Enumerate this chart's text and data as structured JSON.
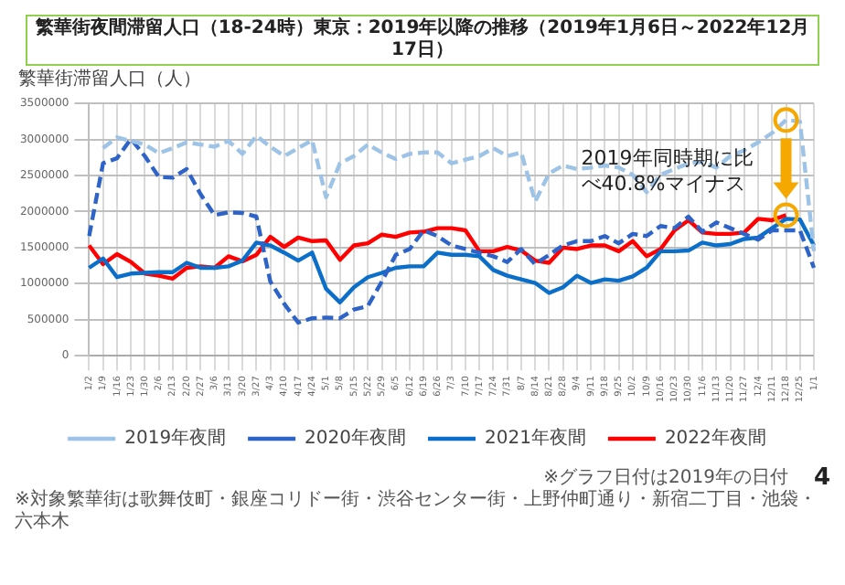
{
  "chart_data": {
    "type": "line",
    "title": "繁華街夜間滞留人口（18-24時）東京：2019年以降の推移（2019年1月6日～2022年12月17日）",
    "ylabel": "繁華街滞留人口（人）",
    "categories": [
      "1/2",
      "1/9",
      "1/16",
      "1/23",
      "1/30",
      "2/6",
      "2/13",
      "2/20",
      "2/27",
      "3/6",
      "3/13",
      "3/20",
      "3/27",
      "4/3",
      "4/10",
      "4/17",
      "4/24",
      "5/1",
      "5/8",
      "5/15",
      "5/22",
      "5/29",
      "6/5",
      "6/12",
      "6/19",
      "6/26",
      "7/3",
      "7/10",
      "7/17",
      "7/24",
      "7/31",
      "8/7",
      "8/14",
      "8/21",
      "8/28",
      "9/4",
      "9/11",
      "9/18",
      "9/25",
      "10/2",
      "10/9",
      "10/16",
      "10/23",
      "10/30",
      "11/6",
      "11/13",
      "11/20",
      "11/27",
      "12/4",
      "12/11",
      "12/18",
      "12/25",
      "1/1"
    ],
    "series": [
      {
        "name": "2019年夜間",
        "color": "#9dc3e6",
        "line_style": "dashed",
        "values": [
          null,
          2880000,
          3030000,
          2980000,
          2930000,
          2810000,
          2880000,
          2960000,
          2930000,
          2900000,
          2980000,
          2800000,
          3050000,
          2900000,
          2770000,
          2880000,
          2990000,
          2200000,
          2670000,
          2770000,
          2930000,
          2820000,
          2730000,
          2800000,
          2820000,
          2820000,
          2670000,
          2720000,
          2770000,
          2880000,
          2770000,
          2820000,
          2140000,
          2530000,
          2640000,
          2590000,
          2610000,
          2640000,
          2610000,
          2510000,
          2270000,
          2510000,
          2590000,
          2670000,
          2690000,
          2610000,
          2770000,
          2850000,
          2960000,
          3090000,
          3270000,
          3250000,
          1450000
        ]
      },
      {
        "name": "2020年夜間",
        "color": "#2e64c8",
        "line_style": "dashed",
        "values": [
          1660000,
          2670000,
          2740000,
          3010000,
          2770000,
          2480000,
          2470000,
          2590000,
          2240000,
          1950000,
          1990000,
          1980000,
          1930000,
          1030000,
          720000,
          460000,
          520000,
          530000,
          520000,
          640000,
          690000,
          1030000,
          1400000,
          1480000,
          1740000,
          1660000,
          1530000,
          1480000,
          1430000,
          1380000,
          1300000,
          1480000,
          1270000,
          1400000,
          1530000,
          1590000,
          1590000,
          1660000,
          1560000,
          1690000,
          1660000,
          1800000,
          1770000,
          1930000,
          1720000,
          1850000,
          1770000,
          1690000,
          1610000,
          1740000,
          1740000,
          1740000,
          1220000
        ]
      },
      {
        "name": "2021年夜間",
        "color": "#0b6fc9",
        "line_style": "solid",
        "values": [
          1220000,
          1350000,
          1090000,
          1140000,
          1150000,
          1160000,
          1160000,
          1290000,
          1220000,
          1220000,
          1240000,
          1320000,
          1570000,
          1530000,
          1430000,
          1320000,
          1430000,
          930000,
          740000,
          950000,
          1090000,
          1150000,
          1220000,
          1240000,
          1240000,
          1430000,
          1400000,
          1400000,
          1380000,
          1190000,
          1110000,
          1060000,
          1010000,
          870000,
          950000,
          1110000,
          1010000,
          1060000,
          1040000,
          1100000,
          1220000,
          1450000,
          1450000,
          1460000,
          1570000,
          1530000,
          1550000,
          1620000,
          1640000,
          1770000,
          1900000,
          1890000,
          1530000
        ]
      },
      {
        "name": "2022年夜間",
        "color": "#ff0000",
        "line_style": "solid",
        "values": [
          1530000,
          1270000,
          1410000,
          1300000,
          1140000,
          1110000,
          1070000,
          1220000,
          1240000,
          1220000,
          1380000,
          1310000,
          1400000,
          1650000,
          1510000,
          1640000,
          1590000,
          1600000,
          1330000,
          1530000,
          1560000,
          1680000,
          1650000,
          1710000,
          1720000,
          1770000,
          1770000,
          1740000,
          1450000,
          1450000,
          1510000,
          1460000,
          1320000,
          1290000,
          1500000,
          1480000,
          1530000,
          1530000,
          1450000,
          1590000,
          1380000,
          1480000,
          1740000,
          1880000,
          1710000,
          1690000,
          1690000,
          1710000,
          1900000,
          1880000,
          1950000,
          null,
          null
        ]
      }
    ],
    "ylim": [
      0,
      3500000
    ],
    "yticks": [
      0,
      500000,
      1000000,
      1500000,
      2000000,
      2500000,
      3000000,
      3500000
    ],
    "grid": true,
    "legend": "bottom",
    "marker": "none",
    "annotations": [
      {
        "text": "2019年同時期に比べ40.8%マイナス",
        "x": "12/18",
        "y": 1950000
      },
      "※グラフ日付は2019年の日付",
      "※対象繁華街は歌舞伎町・銀座コリドー街・渋谷センター街・上野仲町通り・新宿二丁目・池袋・六本木",
      "4"
    ]
  }
}
